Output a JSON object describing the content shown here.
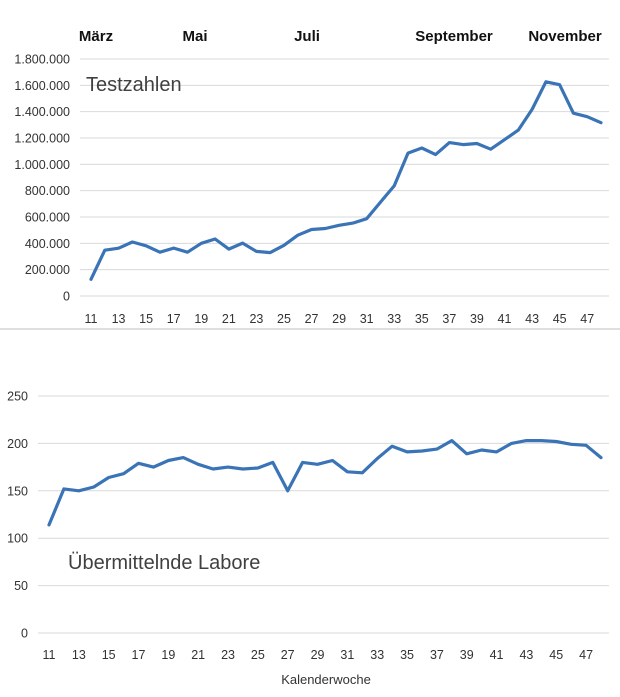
{
  "colors": {
    "line": "#3a74b6",
    "grid": "#d9d9d9",
    "text": "#333333"
  },
  "months": [
    "März",
    "Mai",
    "Juli",
    "September",
    "November"
  ],
  "chart_data": [
    {
      "type": "line",
      "annotation": "Testzahlen",
      "xlabel": "",
      "x": [
        11,
        12,
        13,
        14,
        15,
        16,
        17,
        18,
        19,
        20,
        21,
        22,
        23,
        24,
        25,
        26,
        27,
        28,
        29,
        30,
        31,
        32,
        33,
        34,
        35,
        36,
        37,
        38,
        39,
        40,
        41,
        42,
        43,
        44,
        45,
        46,
        47,
        48
      ],
      "x_tick_labels": [
        "11",
        "13",
        "15",
        "17",
        "19",
        "21",
        "23",
        "25",
        "27",
        "29",
        "31",
        "33",
        "35",
        "37",
        "39",
        "41",
        "43",
        "45",
        "47"
      ],
      "ylim": [
        0,
        1800000
      ],
      "y_tick_labels": [
        "0",
        "200.000",
        "400.000",
        "600.000",
        "800.000",
        "1.000.000",
        "1.200.000",
        "1.400.000",
        "1.600.000",
        "1.800.000"
      ],
      "grid": true,
      "series": [
        {
          "values": [
            127000,
            348000,
            363000,
            410000,
            381000,
            333000,
            364000,
            333000,
            400000,
            433000,
            356000,
            402000,
            339000,
            330000,
            385000,
            462000,
            505000,
            513000,
            537000,
            554000,
            587000,
            713000,
            836000,
            1085000,
            1124000,
            1074000,
            1165000,
            1150000,
            1158000,
            1115000,
            1187000,
            1260000,
            1417000,
            1627000,
            1605000,
            1388000,
            1362000,
            1316000
          ]
        }
      ]
    },
    {
      "type": "line",
      "annotation": "Übermittelnde Labore",
      "xlabel": "Kalenderwoche",
      "x": [
        11,
        12,
        13,
        14,
        15,
        16,
        17,
        18,
        19,
        20,
        21,
        22,
        23,
        24,
        25,
        26,
        27,
        28,
        29,
        30,
        31,
        32,
        33,
        34,
        35,
        36,
        37,
        38,
        39,
        40,
        41,
        42,
        43,
        44,
        45,
        46,
        47,
        48
      ],
      "x_tick_labels": [
        "11",
        "13",
        "15",
        "17",
        "19",
        "21",
        "23",
        "25",
        "27",
        "29",
        "31",
        "33",
        "35",
        "37",
        "39",
        "41",
        "43",
        "45",
        "47"
      ],
      "ylim": [
        0,
        250
      ],
      "y_tick_labels": [
        "0",
        "50",
        "100",
        "150",
        "200",
        "250"
      ],
      "grid": true,
      "series": [
        {
          "values": [
            114,
            152,
            150,
            154,
            164,
            168,
            179,
            175,
            182,
            185,
            178,
            173,
            175,
            173,
            174,
            180,
            150,
            180,
            178,
            182,
            170,
            169,
            184,
            197,
            191,
            192,
            194,
            203,
            189,
            193,
            191,
            200,
            203,
            203,
            202,
            199,
            198,
            185
          ]
        }
      ]
    }
  ]
}
